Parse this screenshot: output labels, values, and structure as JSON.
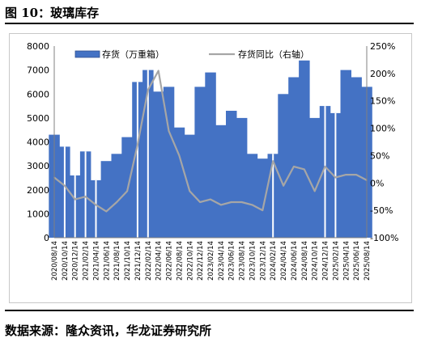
{
  "figure": {
    "title": "图 10：玻璃库存",
    "source": "数据来源：隆众资讯，华龙证券研究所"
  },
  "colors": {
    "bar": "#4472c4",
    "line": "#a6a6a6",
    "gap": "#ffffff"
  },
  "chart_data": {
    "type": "bar",
    "grid": false,
    "legend_position": "top",
    "x": [
      "2020/08/14",
      "2020/10/14",
      "2020/12/14",
      "2021/02/14",
      "2021/04/14",
      "2021/06/14",
      "2021/08/14",
      "2021/10/14",
      "2021/12/14",
      "2022/02/14",
      "2022/04/14",
      "2022/06/14",
      "2022/08/14",
      "2022/10/14",
      "2022/12/14",
      "2023/02/14",
      "2023/04/14",
      "2023/06/14",
      "2023/08/14",
      "2023/10/14",
      "2023/12/14",
      "2024/02/14",
      "2024/04/14",
      "2024/06/14",
      "2024/08/14",
      "2024/10/14",
      "2024/12/14",
      "2025/02/14",
      "2025/04/14",
      "2025/06/14",
      "2025/08/14"
    ],
    "y_left": {
      "min": 0,
      "max": 8000,
      "ticks": [
        "0",
        "1000",
        "2000",
        "3000",
        "4000",
        "5000",
        "6000",
        "7000",
        "8000"
      ]
    },
    "y_right": {
      "min": -100,
      "max": 250,
      "ticks": [
        "-100%",
        "-50%",
        "0%",
        "50%",
        "100%",
        "150%",
        "200%",
        "250%"
      ]
    },
    "series": [
      {
        "name": "存货（万重箱）",
        "kind": "bar",
        "axis": "left",
        "values": [
          4300,
          3800,
          2600,
          3600,
          2400,
          3200,
          3500,
          4200,
          6500,
          7000,
          6100,
          6300,
          4600,
          4300,
          6300,
          6900,
          4700,
          5300,
          5000,
          3500,
          3300,
          3500,
          6000,
          6700,
          7400,
          5000,
          5500,
          5200,
          7000,
          6700,
          6300
        ]
      },
      {
        "name": "存货同比（右轴）",
        "kind": "line",
        "axis": "right",
        "values": [
          10,
          -5,
          -30,
          -25,
          -40,
          -52,
          -35,
          -15,
          70,
          170,
          205,
          95,
          50,
          -15,
          -35,
          -30,
          -40,
          -35,
          -35,
          -40,
          -50,
          40,
          -5,
          30,
          25,
          -15,
          30,
          10,
          15,
          15,
          5
        ]
      }
    ],
    "gaps_at": [
      "2020/10/14",
      "2020/12/14",
      "2021/02/14",
      "2021/04/14",
      "2021/12/14",
      "2022/02/14",
      "2024/02/14",
      "2024/12/14",
      "2025/02/14"
    ]
  }
}
